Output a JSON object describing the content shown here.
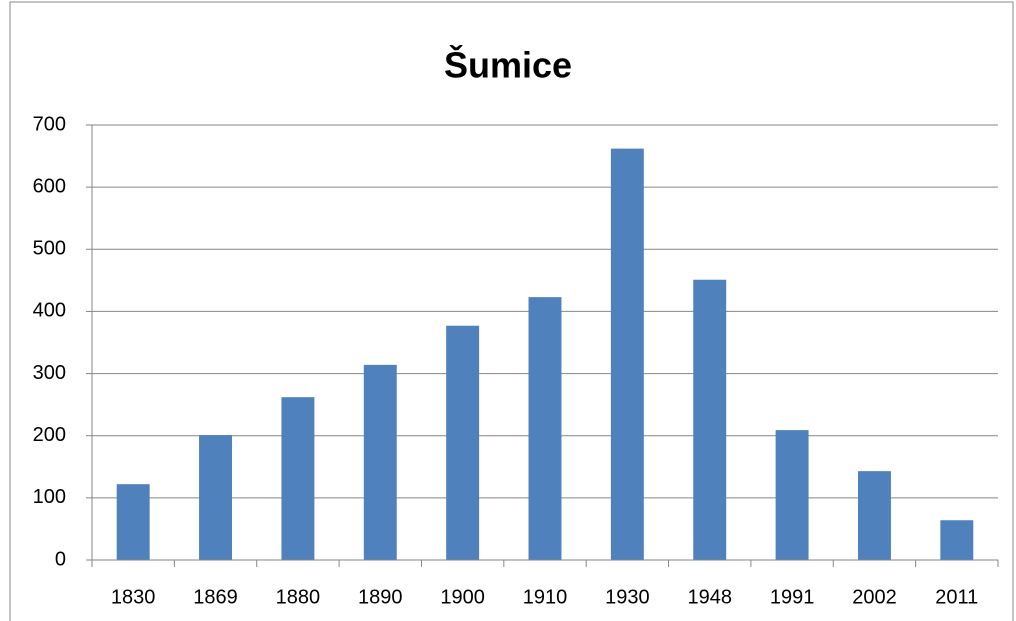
{
  "chart_data": {
    "type": "bar",
    "title": "Šumice",
    "categories": [
      "1830",
      "1869",
      "1880",
      "1890",
      "1900",
      "1910",
      "1930",
      "1948",
      "1991",
      "2002",
      "2011"
    ],
    "values": [
      122,
      201,
      262,
      314,
      377,
      423,
      662,
      451,
      209,
      143,
      64
    ],
    "color": "#4f81bd",
    "ylim": [
      0,
      700
    ],
    "yticks": [
      0,
      100,
      200,
      300,
      400,
      500,
      600,
      700
    ],
    "grid": true
  }
}
